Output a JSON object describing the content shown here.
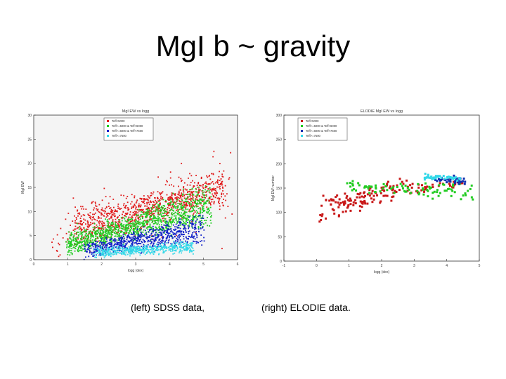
{
  "slide": {
    "title": "MgI b ~ gravity",
    "caption_left": "(left) SDSS data,",
    "caption_right": "(right)  ELODIE data."
  },
  "chart_data": [
    {
      "type": "scatter",
      "title": "MgI EW vs logg",
      "xlabel": "logg (dex)",
      "ylabel": "MgI EW",
      "xlim": [
        0,
        6
      ],
      "ylim": [
        0,
        30
      ],
      "xticks": [
        0,
        1,
        2,
        3,
        4,
        5,
        6
      ],
      "yticks": [
        0,
        5,
        10,
        15,
        20,
        25,
        30
      ],
      "legend_position": "top-left",
      "series": [
        {
          "name": "Teff<5000",
          "color": "#e01818",
          "marker": "dot",
          "clusters": [
            {
              "x": [
                1.2,
                5.6
              ],
              "y_start": [
                3,
                10
              ],
              "y_end": [
                12,
                18
              ],
              "n": 900,
              "spread": 2.0
            },
            {
              "x": [
                0.5,
                5.8
              ],
              "y_start": [
                2,
                6
              ],
              "y_end": [
                10,
                20
              ],
              "n": 150,
              "spread": 6.0
            }
          ]
        },
        {
          "name": "Teff>=5000 & Teff<6000",
          "color": "#22cc22",
          "marker": "dot",
          "clusters": [
            {
              "x": [
                1.0,
                5.2
              ],
              "y_start": [
                2,
                4
              ],
              "y_end": [
                8,
                15
              ],
              "n": 1200,
              "spread": 2.0
            }
          ]
        },
        {
          "name": "Teff>=6000 & Teff<7500",
          "color": "#1020c8",
          "marker": "dot",
          "clusters": [
            {
              "x": [
                1.5,
                5.0
              ],
              "y_start": [
                1.5,
                2.5
              ],
              "y_end": [
                4,
                9
              ],
              "n": 700,
              "spread": 1.4
            }
          ]
        },
        {
          "name": "Teff>=7500",
          "color": "#33d8e8",
          "marker": "dot",
          "clusters": [
            {
              "x": [
                1.8,
                4.7
              ],
              "y_start": [
                1,
                2
              ],
              "y_end": [
                2,
                3.5
              ],
              "n": 500,
              "spread": 0.8
            }
          ]
        }
      ]
    },
    {
      "type": "scatter",
      "title": "ELODIE MgI EW vs logg",
      "xlabel": "logg (dex)",
      "ylabel": "MgI EW number",
      "xlim": [
        -1,
        5
      ],
      "ylim": [
        0,
        300
      ],
      "xticks": [
        -1,
        0,
        1,
        2,
        3,
        4,
        5
      ],
      "yticks": [
        0,
        50,
        100,
        150,
        200,
        250,
        300
      ],
      "legend_position": "top-left",
      "series": [
        {
          "name": "Teff<5000",
          "color": "#c81818",
          "marker": "square",
          "clusters": [
            {
              "x": [
                0.1,
                2.8
              ],
              "y_start": [
                80,
                130
              ],
              "y_end": [
                140,
                175
              ],
              "n": 120,
              "spread": 12
            },
            {
              "x": [
                2.8,
                4.5
              ],
              "y_start": [
                140,
                150
              ],
              "y_end": [
                150,
                165
              ],
              "n": 40,
              "spread": 10
            }
          ]
        },
        {
          "name": "Teff>=5000 & Teff<6000",
          "color": "#22cc22",
          "marker": "square",
          "clusters": [
            {
              "x": [
                1.0,
                4.8
              ],
              "y_start": [
                150,
                160
              ],
              "y_end": [
                155,
                130
              ],
              "n": 90,
              "spread": 10
            }
          ]
        },
        {
          "name": "Teff>=6000 & Teff<7500",
          "color": "#1030b0",
          "marker": "square",
          "clusters": [
            {
              "x": [
                3.6,
                4.6
              ],
              "y_start": [
                165,
                172
              ],
              "y_end": [
                170,
                160
              ],
              "n": 40,
              "spread": 5
            }
          ]
        },
        {
          "name": "Teff>=7500",
          "color": "#33d8e8",
          "marker": "square",
          "clusters": [
            {
              "x": [
                3.3,
                4.4
              ],
              "y_start": [
                170,
                178
              ],
              "y_end": [
                172,
                168
              ],
              "n": 45,
              "spread": 4
            }
          ]
        }
      ]
    }
  ]
}
